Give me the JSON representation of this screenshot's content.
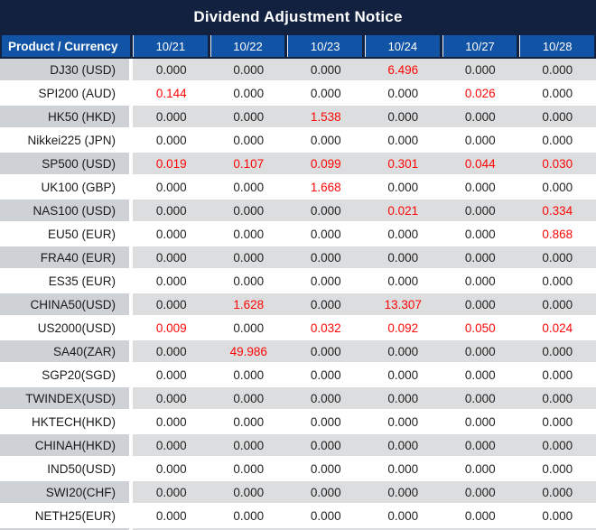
{
  "title": "Dividend Adjustment Notice",
  "table": {
    "product_header": "Product / Currency",
    "date_headers": [
      "10/21",
      "10/22",
      "10/23",
      "10/24",
      "10/27",
      "10/28"
    ],
    "rows": [
      {
        "product": "DJ30 (USD)",
        "values": [
          "0.000",
          "0.000",
          "0.000",
          "6.496",
          "0.000",
          "0.000"
        ],
        "red": [
          3
        ]
      },
      {
        "product": "SPI200 (AUD)",
        "values": [
          "0.144",
          "0.000",
          "0.000",
          "0.000",
          "0.026",
          "0.000"
        ],
        "red": [
          0,
          4
        ]
      },
      {
        "product": "HK50 (HKD)",
        "values": [
          "0.000",
          "0.000",
          "1.538",
          "0.000",
          "0.000",
          "0.000"
        ],
        "red": [
          2
        ]
      },
      {
        "product": "Nikkei225 (JPN)",
        "values": [
          "0.000",
          "0.000",
          "0.000",
          "0.000",
          "0.000",
          "0.000"
        ],
        "red": []
      },
      {
        "product": "SP500 (USD)",
        "values": [
          "0.019",
          "0.107",
          "0.099",
          "0.301",
          "0.044",
          "0.030"
        ],
        "red": [
          0,
          1,
          2,
          3,
          4,
          5
        ]
      },
      {
        "product": "UK100 (GBP)",
        "values": [
          "0.000",
          "0.000",
          "1.668",
          "0.000",
          "0.000",
          "0.000"
        ],
        "red": [
          2
        ]
      },
      {
        "product": "NAS100 (USD)",
        "values": [
          "0.000",
          "0.000",
          "0.000",
          "0.021",
          "0.000",
          "0.334"
        ],
        "red": [
          3,
          5
        ]
      },
      {
        "product": "EU50 (EUR)",
        "values": [
          "0.000",
          "0.000",
          "0.000",
          "0.000",
          "0.000",
          "0.868"
        ],
        "red": [
          5
        ]
      },
      {
        "product": "FRA40 (EUR)",
        "values": [
          "0.000",
          "0.000",
          "0.000",
          "0.000",
          "0.000",
          "0.000"
        ],
        "red": []
      },
      {
        "product": "ES35 (EUR)",
        "values": [
          "0.000",
          "0.000",
          "0.000",
          "0.000",
          "0.000",
          "0.000"
        ],
        "red": []
      },
      {
        "product": "CHINA50(USD)",
        "values": [
          "0.000",
          "1.628",
          "0.000",
          "13.307",
          "0.000",
          "0.000"
        ],
        "red": [
          1,
          3
        ]
      },
      {
        "product": "US2000(USD)",
        "values": [
          "0.009",
          "0.000",
          "0.032",
          "0.092",
          "0.050",
          "0.024"
        ],
        "red": [
          0,
          2,
          3,
          4,
          5
        ]
      },
      {
        "product": "SA40(ZAR)",
        "values": [
          "0.000",
          "49.986",
          "0.000",
          "0.000",
          "0.000",
          "0.000"
        ],
        "red": [
          1
        ]
      },
      {
        "product": "SGP20(SGD)",
        "values": [
          "0.000",
          "0.000",
          "0.000",
          "0.000",
          "0.000",
          "0.000"
        ],
        "red": []
      },
      {
        "product": "TWINDEX(USD)",
        "values": [
          "0.000",
          "0.000",
          "0.000",
          "0.000",
          "0.000",
          "0.000"
        ],
        "red": []
      },
      {
        "product": "HKTECH(HKD)",
        "values": [
          "0.000",
          "0.000",
          "0.000",
          "0.000",
          "0.000",
          "0.000"
        ],
        "red": []
      },
      {
        "product": "CHINAH(HKD)",
        "values": [
          "0.000",
          "0.000",
          "0.000",
          "0.000",
          "0.000",
          "0.000"
        ],
        "red": []
      },
      {
        "product": "IND50(USD)",
        "values": [
          "0.000",
          "0.000",
          "0.000",
          "0.000",
          "0.000",
          "0.000"
        ],
        "red": []
      },
      {
        "product": "SWI20(CHF)",
        "values": [
          "0.000",
          "0.000",
          "0.000",
          "0.000",
          "0.000",
          "0.000"
        ],
        "red": []
      },
      {
        "product": "NETH25(EUR)",
        "values": [
          "0.000",
          "0.000",
          "0.000",
          "0.000",
          "0.000",
          "0.000"
        ],
        "red": []
      }
    ]
  },
  "colors": {
    "title_bar_bg": "#132140",
    "header_cell_bg": "#1153A4",
    "odd_row_product_bg": "#CED1D6",
    "odd_row_values_bg": "#DCDDDE",
    "highlight_value": "#FE0606",
    "normal_value": "#1F1F1F"
  }
}
